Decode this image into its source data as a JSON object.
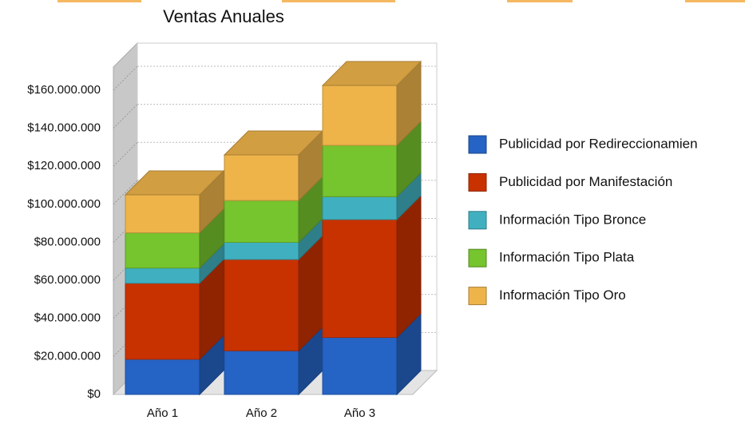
{
  "chart_data": {
    "type": "stacked-bar-3d",
    "title": "Ventas Anuales",
    "categories": [
      "Año 1",
      "Año 2",
      "Año 3"
    ],
    "series": [
      {
        "name": "Publicidad por Redireccionamien",
        "color": "#2563c4",
        "values": [
          18500000,
          23000000,
          30000000
        ]
      },
      {
        "name": "Publicidad por Manifestación",
        "color": "#c83200",
        "values": [
          40000000,
          48000000,
          62000000
        ]
      },
      {
        "name": "Información Tipo Bronce",
        "color": "#40b0c0",
        "values": [
          8000000,
          9000000,
          12000000
        ]
      },
      {
        "name": "Información Tipo Plata",
        "color": "#76c42e",
        "values": [
          18500000,
          22000000,
          27000000
        ]
      },
      {
        "name": "Información Tipo Oro",
        "color": "#eeb44a",
        "values": [
          20000000,
          24000000,
          31500000
        ]
      }
    ],
    "ylim": [
      0,
      160000000
    ],
    "yticks": [
      {
        "value": 0,
        "label": "$0"
      },
      {
        "value": 20000000,
        "label": "$20.000.000"
      },
      {
        "value": 40000000,
        "label": "$40.000.000"
      },
      {
        "value": 60000000,
        "label": "$60.000.000"
      },
      {
        "value": 80000000,
        "label": "$80.000.000"
      },
      {
        "value": 100000000,
        "label": "$100.000.000"
      },
      {
        "value": 120000000,
        "label": "$120.000.000"
      },
      {
        "value": 140000000,
        "label": "$140.000.000"
      },
      {
        "value": 160000000,
        "label": "$160.000.000"
      }
    ],
    "grid": true
  }
}
